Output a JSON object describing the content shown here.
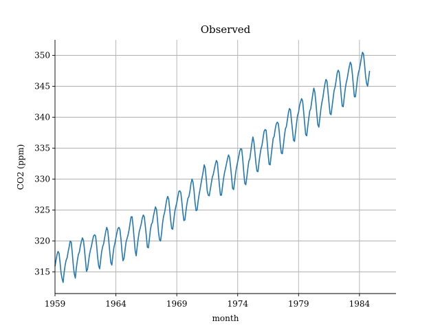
{
  "chart_data": {
    "type": "line",
    "title": "Observed",
    "xlabel": "month",
    "ylabel": "CO2 (ppm)",
    "xlim": [
      1959,
      1987
    ],
    "ylim": [
      311.5,
      352.5
    ],
    "x_ticks": [
      1959,
      1964,
      1969,
      1974,
      1979,
      1984
    ],
    "x_tick_labels": [
      "1959",
      "1964",
      "1969",
      "1974",
      "1979",
      "1984"
    ],
    "y_ticks": [
      315,
      320,
      325,
      330,
      335,
      340,
      345,
      350
    ],
    "y_tick_labels": [
      "315",
      "320",
      "325",
      "330",
      "335",
      "340",
      "345",
      "350"
    ],
    "grid": true,
    "legend": "none",
    "series": [
      {
        "color": "#1f77b4",
        "x_start": 1959.0,
        "x_step_years": 0.0833,
        "points_per_year": 12,
        "year_of_first_value": 1959,
        "values": [
          315.9,
          316.9,
          317.8,
          318.3,
          318.0,
          316.5,
          314.8,
          313.9,
          313.3,
          314.9,
          316.1,
          316.9,
          317.3,
          318.3,
          319.1,
          320.0,
          319.8,
          318.1,
          316.1,
          314.7,
          314.0,
          315.6,
          316.8,
          317.8,
          318.2,
          319.2,
          319.9,
          320.5,
          320.1,
          318.7,
          316.9,
          315.1,
          315.4,
          316.6,
          317.8,
          318.6,
          319.2,
          320.1,
          320.8,
          321.0,
          320.8,
          319.3,
          317.4,
          316.0,
          315.5,
          316.9,
          318.3,
          319.1,
          319.6,
          320.6,
          321.5,
          322.2,
          321.7,
          320.0,
          318.2,
          316.5,
          316.1,
          317.6,
          318.9,
          319.6,
          320.5,
          321.3,
          322.0,
          322.2,
          321.8,
          320.3,
          318.3,
          316.8,
          317.2,
          318.5,
          319.8,
          320.4,
          321.0,
          321.8,
          322.9,
          323.9,
          323.9,
          322.3,
          320.4,
          318.4,
          317.6,
          319.1,
          320.4,
          321.5,
          322.1,
          322.8,
          323.7,
          324.2,
          323.9,
          322.4,
          320.8,
          319.0,
          318.9,
          320.3,
          321.8,
          322.7,
          323.0,
          324.0,
          324.8,
          325.5,
          325.1,
          323.4,
          321.4,
          320.2,
          320.0,
          321.2,
          322.9,
          324.0,
          324.6,
          325.6,
          326.6,
          327.2,
          326.8,
          325.2,
          323.3,
          322.0,
          321.9,
          323.3,
          324.7,
          325.5,
          326.2,
          327.1,
          328.0,
          328.1,
          327.8,
          326.3,
          324.6,
          323.3,
          323.4,
          324.8,
          326.0,
          326.9,
          327.2,
          328.1,
          329.3,
          330.0,
          329.5,
          328.1,
          326.2,
          324.9,
          325.0,
          326.4,
          327.5,
          328.4,
          329.4,
          330.3,
          331.2,
          332.3,
          331.8,
          330.1,
          328.1,
          327.4,
          327.3,
          328.3,
          329.3,
          330.3,
          330.8,
          331.6,
          332.4,
          333.0,
          332.7,
          330.8,
          329.0,
          327.4,
          327.4,
          328.7,
          330.0,
          331.0,
          331.7,
          332.5,
          333.3,
          333.9,
          333.5,
          332.0,
          330.3,
          328.5,
          328.3,
          329.6,
          331.0,
          332.0,
          332.8,
          333.6,
          334.5,
          334.9,
          334.8,
          333.2,
          331.1,
          329.3,
          329.1,
          330.3,
          331.7,
          332.9,
          333.3,
          334.6,
          335.8,
          336.8,
          336.0,
          334.3,
          332.5,
          331.3,
          331.2,
          332.7,
          333.9,
          334.9,
          335.5,
          336.6,
          337.7,
          338.0,
          337.9,
          336.1,
          334.0,
          332.4,
          332.3,
          333.8,
          335.2,
          336.6,
          336.9,
          338.1,
          338.9,
          339.2,
          339.0,
          337.6,
          335.6,
          334.2,
          334.1,
          335.4,
          336.9,
          338.1,
          338.5,
          339.6,
          340.7,
          341.4,
          341.2,
          339.5,
          337.9,
          336.3,
          336.1,
          337.6,
          339.0,
          340.3,
          340.8,
          341.9,
          342.5,
          343.0,
          342.6,
          340.9,
          339.0,
          337.2,
          337.0,
          338.4,
          339.8,
          341.0,
          341.4,
          342.6,
          343.7,
          344.7,
          344.1,
          342.5,
          340.5,
          338.8,
          338.4,
          339.9,
          341.3,
          342.4,
          343.2,
          344.4,
          345.4,
          346.1,
          345.8,
          344.1,
          342.3,
          340.6,
          340.4,
          341.7,
          343.0,
          344.3,
          344.9,
          345.9,
          347.1,
          347.6,
          347.3,
          345.6,
          343.5,
          341.8,
          341.7,
          343.2,
          344.6,
          345.6,
          346.3,
          347.3,
          348.2,
          348.9,
          348.5,
          347.0,
          345.1,
          343.3,
          343.3,
          344.7,
          346.2,
          347.2,
          347.8,
          348.7,
          349.7,
          350.5,
          350.2,
          348.6,
          346.7,
          345.5,
          345.0,
          346.2,
          347.5
        ]
      }
    ]
  }
}
